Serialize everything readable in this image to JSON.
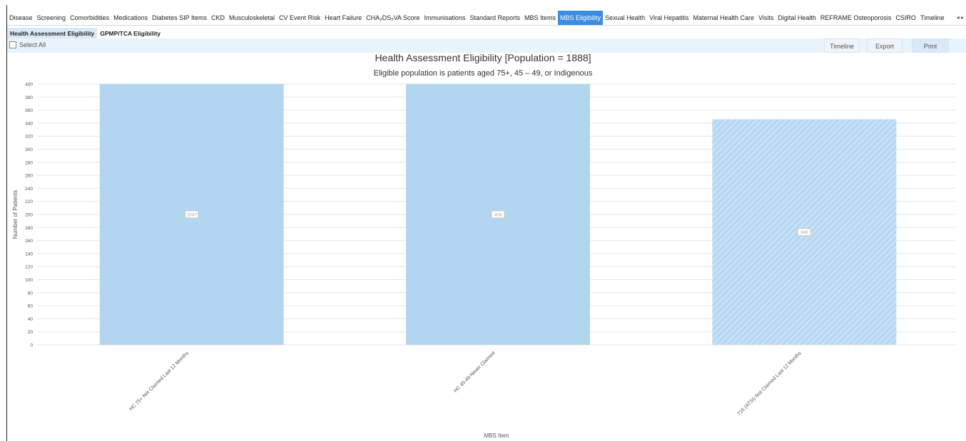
{
  "tabs": [
    "Disease",
    "Screening",
    "Comorbidities",
    "Medications",
    "Diabetes SIP Items",
    "CKD",
    "Musculoskeletal",
    "CV Event Risk",
    "Heart Failure",
    "CHA₂DS₂VA Score",
    "Immunisations",
    "Standard Reports",
    "MBS Items",
    "MBS Eligibility",
    "Sexual Health",
    "Viral Hepatitis",
    "Maternal Health Care",
    "Visits",
    "Digital Health",
    "REFRAME Osteoporosis",
    "CSIRO",
    "Timeline"
  ],
  "active_tab": "MBS Eligibility",
  "tab_scroll_icon": "◂ ▸",
  "subtabs": [
    "Health Assessment Eligibility",
    "GPMP/TCA Eligibility"
  ],
  "toolbar": {
    "select_all": "Select All",
    "timeline": "Timeline",
    "export": "Export",
    "print": "Print"
  },
  "colors": {
    "accent": "#3a8de0",
    "bar": "#b3d6f0",
    "bar_hatch": "#9ec9ec"
  },
  "chart_data": {
    "type": "bar",
    "title": "Health Assessment Eligibility [Population = 1888]",
    "subtitle": "Eligible population is patients aged 75+, 45 – 49, or Indigenous",
    "xlabel": "MBS Item",
    "ylabel": "Number of Patients",
    "ylim": [
      0,
      400
    ],
    "yticks": [
      0,
      20,
      40,
      60,
      80,
      100,
      120,
      140,
      160,
      180,
      200,
      220,
      240,
      260,
      280,
      300,
      320,
      340,
      360,
      380,
      400
    ],
    "grid": true,
    "categories": [
      "HC 75+ Not Claimed Last 12 Months",
      "HC 45-49 Never Claimed",
      "715 (ATSI) Not Claimed Last 12 Months"
    ],
    "values": [
      1047,
      408,
      346
    ],
    "data_labels": [
      "1047",
      "408",
      "346"
    ],
    "hatched": [
      false,
      false,
      true
    ]
  }
}
